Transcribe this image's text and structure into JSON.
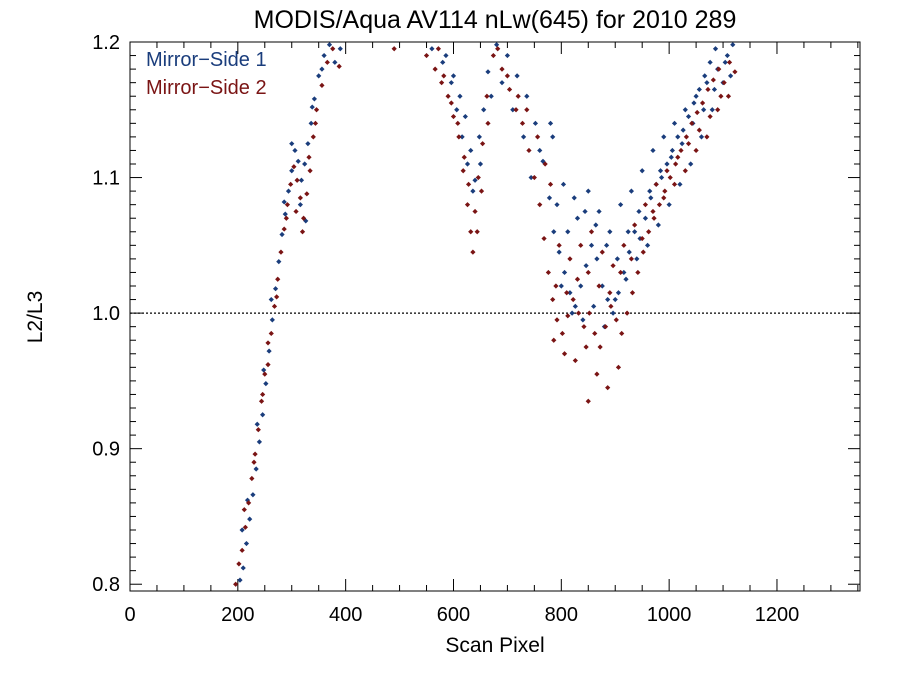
{
  "chart_data": {
    "type": "scatter",
    "title": "MODIS/Aqua AV114 nLw(645) for 2010 289",
    "xlabel": "Scan Pixel",
    "ylabel": "L2/L3",
    "xlim": [
      0,
      1354
    ],
    "ylim": [
      0.795,
      1.2
    ],
    "xticks": [
      0,
      200,
      400,
      600,
      800,
      1000,
      1200
    ],
    "xtick_labels": [
      "0",
      "200",
      "400",
      "600",
      "800",
      "1000",
      "1200"
    ],
    "yticks": [
      0.8,
      0.9,
      1.0,
      1.1,
      1.2
    ],
    "ytick_labels": [
      "0.8",
      "0.9",
      "1.0",
      "1.1",
      "1.2"
    ],
    "reference_line": 1.0,
    "legend_position": "top-left",
    "grid": false,
    "series": [
      {
        "name": "Mirror−Side 1",
        "color": "#1a3d7c",
        "points": [
          [
            198,
            0.79
          ],
          [
            204,
            0.803
          ],
          [
            210,
            0.812
          ],
          [
            216,
            0.83
          ],
          [
            222,
            0.848
          ],
          [
            228,
            0.866
          ],
          [
            234,
            0.885
          ],
          [
            240,
            0.905
          ],
          [
            246,
            0.925
          ],
          [
            252,
            0.948
          ],
          [
            258,
            0.972
          ],
          [
            264,
            0.995
          ],
          [
            270,
            1.018
          ],
          [
            276,
            1.038
          ],
          [
            282,
            1.058
          ],
          [
            288,
            1.073
          ],
          [
            294,
            1.09
          ],
          [
            300,
            1.105
          ],
          [
            306,
            1.12
          ],
          [
            312,
            1.112
          ],
          [
            318,
            1.098
          ],
          [
            324,
            1.11
          ],
          [
            330,
            1.125
          ],
          [
            336,
            1.14
          ],
          [
            342,
            1.158
          ],
          [
            350,
            1.175
          ],
          [
            360,
            1.19
          ],
          [
            370,
            1.198
          ],
          [
            380,
            1.185
          ],
          [
            390,
            1.195
          ],
          [
            208,
            0.84
          ],
          [
            218,
            0.862
          ],
          [
            236,
            0.918
          ],
          [
            248,
            0.958
          ],
          [
            262,
            1.01
          ],
          [
            286,
            1.082
          ],
          [
            300,
            1.125
          ],
          [
            316,
            1.08
          ],
          [
            326,
            1.068
          ],
          [
            338,
            1.152
          ],
          [
            356,
            1.18
          ],
          [
            540,
            1.2
          ],
          [
            560,
            1.195
          ],
          [
            580,
            1.185
          ],
          [
            600,
            1.175
          ],
          [
            612,
            1.16
          ],
          [
            622,
            1.145
          ],
          [
            632,
            1.12
          ],
          [
            640,
            1.098
          ],
          [
            648,
            1.13
          ],
          [
            656,
            1.15
          ],
          [
            664,
            1.178
          ],
          [
            680,
            1.198
          ],
          [
            700,
            1.19
          ],
          [
            718,
            1.175
          ],
          [
            736,
            1.16
          ],
          [
            752,
            1.14
          ],
          [
            766,
            1.112
          ],
          [
            778,
            1.085
          ],
          [
            786,
            1.06
          ],
          [
            796,
            1.045
          ],
          [
            806,
            1.03
          ],
          [
            816,
            1.015
          ],
          [
            826,
            1.005
          ],
          [
            836,
            1.02
          ],
          [
            846,
            1.035
          ],
          [
            856,
            1.05
          ],
          [
            866,
            1.04
          ],
          [
            876,
            1.02
          ],
          [
            886,
            1.01
          ],
          [
            896,
            1.0
          ],
          [
            906,
            1.015
          ],
          [
            916,
            1.03
          ],
          [
            926,
            1.045
          ],
          [
            936,
            1.06
          ],
          [
            946,
            1.055
          ],
          [
            956,
            1.07
          ],
          [
            966,
            1.085
          ],
          [
            976,
            1.095
          ],
          [
            986,
            1.1
          ],
          [
            996,
            1.11
          ],
          [
            1006,
            1.12
          ],
          [
            1016,
            1.13
          ],
          [
            1026,
            1.135
          ],
          [
            1036,
            1.145
          ],
          [
            1046,
            1.155
          ],
          [
            1056,
            1.165
          ],
          [
            1066,
            1.175
          ],
          [
            1076,
            1.185
          ],
          [
            1086,
            1.195
          ],
          [
            1096,
            1.2
          ],
          [
            1108,
            1.19
          ],
          [
            1118,
            1.198
          ],
          [
            792,
            1.08
          ],
          [
            812,
            1.06
          ],
          [
            830,
            1.07
          ],
          [
            850,
            1.09
          ],
          [
            870,
            1.075
          ],
          [
            890,
            1.06
          ],
          [
            910,
            1.08
          ],
          [
            930,
            1.09
          ],
          [
            950,
            1.105
          ],
          [
            970,
            1.12
          ],
          [
            990,
            1.13
          ],
          [
            1010,
            1.14
          ],
          [
            1030,
            1.15
          ],
          [
            1050,
            1.16
          ],
          [
            1070,
            1.17
          ],
          [
            1090,
            1.18
          ],
          [
            800,
            1.02
          ],
          [
            820,
            1.0
          ],
          [
            840,
            0.995
          ],
          [
            860,
            1.005
          ],
          [
            880,
            0.99
          ],
          [
            900,
            1.01
          ],
          [
            920,
            1.025
          ],
          [
            940,
            1.04
          ],
          [
            960,
            1.05
          ],
          [
            980,
            1.065
          ],
          [
            1000,
            1.08
          ],
          [
            1020,
            1.095
          ],
          [
            1040,
            1.11
          ],
          [
            1060,
            1.13
          ],
          [
            1080,
            1.15
          ],
          [
            1100,
            1.17
          ],
          [
            780,
            1.14
          ],
          [
            760,
            1.12
          ],
          [
            744,
            1.1
          ],
          [
            730,
            1.13
          ],
          [
            710,
            1.15
          ],
          [
            690,
            1.17
          ],
          [
            670,
            1.16
          ],
          [
            650,
            1.11
          ],
          [
            636,
            1.09
          ],
          [
            626,
            1.11
          ],
          [
            616,
            1.13
          ],
          [
            606,
            1.15
          ],
          [
            596,
            1.17
          ],
          [
            586,
            1.19
          ],
          [
            570,
            1.2
          ],
          [
            784,
            1.13
          ],
          [
            804,
            1.095
          ],
          [
            824,
            1.085
          ],
          [
            844,
            1.075
          ],
          [
            864,
            1.065
          ],
          [
            884,
            1.05
          ],
          [
            904,
            1.04
          ],
          [
            924,
            1.06
          ],
          [
            944,
            1.075
          ],
          [
            964,
            1.09
          ],
          [
            984,
            1.105
          ],
          [
            1004,
            1.115
          ],
          [
            1024,
            1.125
          ],
          [
            1044,
            1.14
          ],
          [
            1064,
            1.15
          ],
          [
            1084,
            1.165
          ],
          [
            1104,
            1.185
          ],
          [
            1114,
            1.175
          ]
        ]
      },
      {
        "name": "Mirror−Side 2",
        "color": "#7a1414",
        "points": [
          [
            196,
            0.8
          ],
          [
            202,
            0.815
          ],
          [
            208,
            0.825
          ],
          [
            214,
            0.842
          ],
          [
            220,
            0.86
          ],
          [
            226,
            0.878
          ],
          [
            232,
            0.896
          ],
          [
            238,
            0.914
          ],
          [
            244,
            0.935
          ],
          [
            250,
            0.955
          ],
          [
            256,
            0.978
          ],
          [
            262,
            0.985
          ],
          [
            268,
            1.005
          ],
          [
            274,
            1.025
          ],
          [
            280,
            1.045
          ],
          [
            286,
            1.062
          ],
          [
            292,
            1.08
          ],
          [
            298,
            1.095
          ],
          [
            304,
            1.108
          ],
          [
            310,
            1.098
          ],
          [
            316,
            1.085
          ],
          [
            322,
            1.07
          ],
          [
            328,
            1.088
          ],
          [
            334,
            1.105
          ],
          [
            340,
            1.13
          ],
          [
            346,
            1.15
          ],
          [
            356,
            1.168
          ],
          [
            366,
            1.185
          ],
          [
            376,
            1.195
          ],
          [
            388,
            1.182
          ],
          [
            212,
            0.855
          ],
          [
            230,
            0.89
          ],
          [
            246,
            0.94
          ],
          [
            256,
            0.962
          ],
          [
            272,
            1.012
          ],
          [
            290,
            1.07
          ],
          [
            308,
            1.075
          ],
          [
            320,
            1.06
          ],
          [
            332,
            1.115
          ],
          [
            344,
            1.14
          ],
          [
            490,
            1.195
          ],
          [
            550,
            1.19
          ],
          [
            566,
            1.18
          ],
          [
            578,
            1.17
          ],
          [
            590,
            1.16
          ],
          [
            600,
            1.145
          ],
          [
            610,
            1.13
          ],
          [
            618,
            1.105
          ],
          [
            626,
            1.08
          ],
          [
            632,
            1.06
          ],
          [
            640,
            1.075
          ],
          [
            646,
            1.1
          ],
          [
            654,
            1.125
          ],
          [
            662,
            1.16
          ],
          [
            674,
            1.19
          ],
          [
            690,
            1.18
          ],
          [
            704,
            1.165
          ],
          [
            716,
            1.15
          ],
          [
            728,
            1.14
          ],
          [
            740,
            1.12
          ],
          [
            750,
            1.1
          ],
          [
            760,
            1.08
          ],
          [
            768,
            1.055
          ],
          [
            776,
            1.03
          ],
          [
            784,
            1.01
          ],
          [
            792,
            0.995
          ],
          [
            802,
            0.985
          ],
          [
            812,
            0.998
          ],
          [
            822,
            1.01
          ],
          [
            832,
            1.0
          ],
          [
            842,
            0.99
          ],
          [
            852,
            1.0
          ],
          [
            862,
            0.985
          ],
          [
            872,
            0.975
          ],
          [
            882,
            0.99
          ],
          [
            892,
            1.005
          ],
          [
            902,
            0.995
          ],
          [
            912,
            0.985
          ],
          [
            922,
            1.0
          ],
          [
            932,
            1.015
          ],
          [
            942,
            1.03
          ],
          [
            952,
            1.045
          ],
          [
            962,
            1.06
          ],
          [
            972,
            1.07
          ],
          [
            982,
            1.08
          ],
          [
            992,
            1.09
          ],
          [
            1002,
            1.1
          ],
          [
            1012,
            1.11
          ],
          [
            1022,
            1.12
          ],
          [
            1032,
            1.13
          ],
          [
            1042,
            1.14
          ],
          [
            1052,
            1.148
          ],
          [
            1062,
            1.155
          ],
          [
            1072,
            1.165
          ],
          [
            1082,
            1.172
          ],
          [
            1092,
            1.18
          ],
          [
            1102,
            1.17
          ],
          [
            1112,
            1.185
          ],
          [
            1122,
            1.178
          ],
          [
            796,
            1.05
          ],
          [
            816,
            1.04
          ],
          [
            836,
            1.05
          ],
          [
            856,
            1.06
          ],
          [
            876,
            1.045
          ],
          [
            896,
            1.035
          ],
          [
            916,
            1.05
          ],
          [
            936,
            1.065
          ],
          [
            956,
            1.08
          ],
          [
            976,
            1.095
          ],
          [
            996,
            1.105
          ],
          [
            1016,
            1.115
          ],
          [
            1036,
            1.125
          ],
          [
            1056,
            1.135
          ],
          [
            1076,
            1.145
          ],
          [
            1096,
            1.16
          ],
          [
            786,
            0.98
          ],
          [
            806,
            0.97
          ],
          [
            826,
            0.965
          ],
          [
            846,
            0.975
          ],
          [
            866,
            0.955
          ],
          [
            886,
            0.945
          ],
          [
            906,
            0.96
          ],
          [
            850,
            0.935
          ],
          [
            780,
            1.095
          ],
          [
            770,
            1.11
          ],
          [
            756,
            1.13
          ],
          [
            736,
            1.15
          ],
          [
            720,
            1.16
          ],
          [
            700,
            1.175
          ],
          [
            682,
            1.195
          ],
          [
            664,
            1.14
          ],
          [
            652,
            1.09
          ],
          [
            644,
            1.06
          ],
          [
            636,
            1.045
          ],
          [
            628,
            1.095
          ],
          [
            620,
            1.115
          ],
          [
            608,
            1.14
          ],
          [
            596,
            1.155
          ],
          [
            582,
            1.175
          ],
          [
            572,
            1.195
          ],
          [
            790,
            1.02
          ],
          [
            810,
            1.015
          ],
          [
            830,
            1.025
          ],
          [
            850,
            1.03
          ],
          [
            870,
            1.02
          ],
          [
            890,
            1.015
          ],
          [
            910,
            1.03
          ],
          [
            930,
            1.04
          ],
          [
            950,
            1.055
          ],
          [
            970,
            1.075
          ],
          [
            990,
            1.085
          ],
          [
            1010,
            1.095
          ],
          [
            1030,
            1.105
          ],
          [
            1050,
            1.12
          ],
          [
            1070,
            1.13
          ],
          [
            1090,
            1.15
          ],
          [
            1110,
            1.16
          ]
        ]
      }
    ]
  }
}
